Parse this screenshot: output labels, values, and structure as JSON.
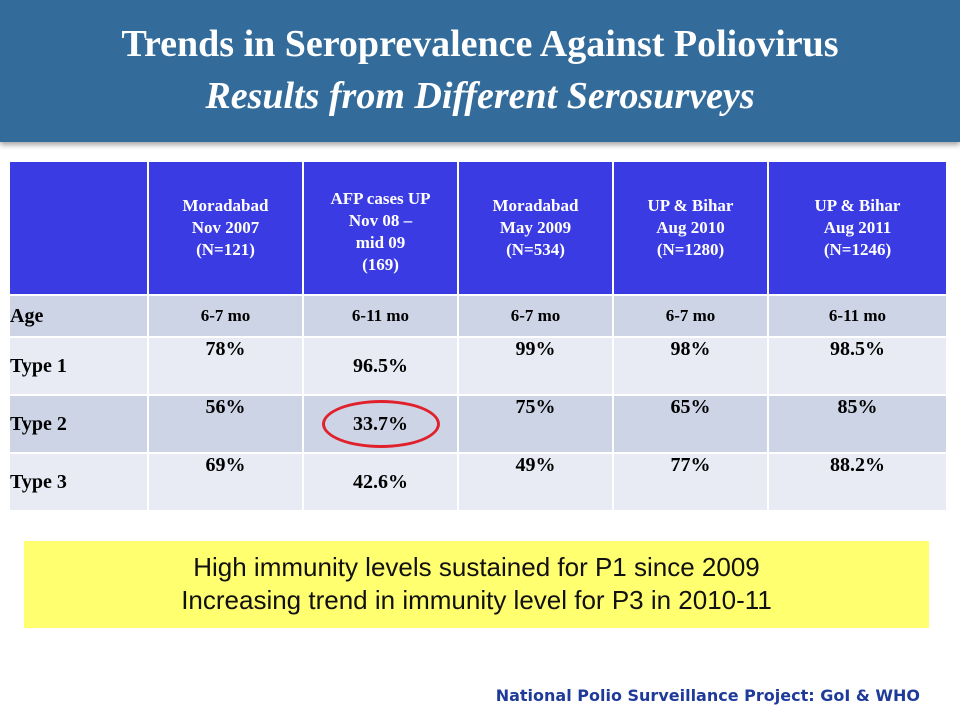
{
  "title": {
    "line1": "Trends in Seroprevalence Against Poliovirus",
    "line2": "Results from Different Serosurveys"
  },
  "table": {
    "columns": [
      [
        "Moradabad",
        "Nov 2007",
        "(N=121)"
      ],
      [
        "AFP cases UP",
        "Nov 08 –",
        "mid 09",
        "(169)"
      ],
      [
        "Moradabad",
        "May 2009",
        "(N=534)"
      ],
      [
        "UP & Bihar",
        "Aug 2010",
        "(N=1280)"
      ],
      [
        "UP & Bihar",
        "Aug 2011",
        "(N=1246)"
      ]
    ],
    "rows": [
      {
        "label": "Age",
        "cells": [
          "6-7 mo",
          "6-11 mo",
          "6-7 mo",
          "6-7 mo",
          "6-11 mo"
        ]
      },
      {
        "label": "Type 1",
        "cells": [
          "78%",
          "96.5%",
          "99%",
          "98%",
          "98.5%"
        ]
      },
      {
        "label": "Type 2",
        "cells": [
          "56%",
          "33.7%",
          "75%",
          "65%",
          "85%"
        ]
      },
      {
        "label": "Type 3",
        "cells": [
          "69%",
          "42.6%",
          "49%",
          "77%",
          "88.2%"
        ]
      }
    ]
  },
  "highlight": {
    "line1": "High immunity levels sustained for P1 since 2009",
    "line2": "Increasing trend in immunity level for P3 in 2010-11"
  },
  "footer": "National Polio Surveillance Project: GoI & WHO",
  "colors": {
    "title_band": "#336b9a",
    "header_fill": "#3b3be4",
    "row_dark": "#cdd4e6",
    "row_light": "#e8ebf4",
    "highlight_fill": "#ffff6f",
    "circle_stroke": "#e0202a",
    "footer_text": "#1f3b9a"
  }
}
